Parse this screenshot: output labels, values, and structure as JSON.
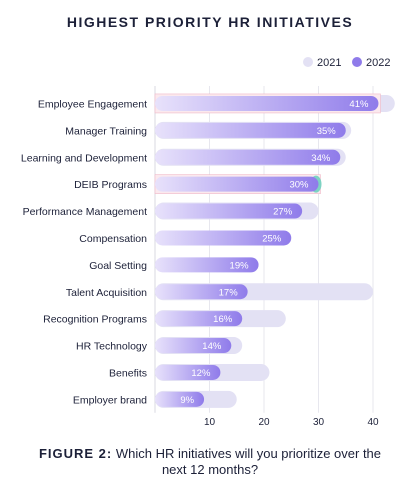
{
  "chart_data": {
    "type": "bar",
    "title": "HIGHEST PRIORITY HR INITIATIVES",
    "orientation": "horizontal",
    "categories": [
      "Employee Engagement",
      "Manager Training",
      "Learning and Development",
      "DEIB Programs",
      "Performance Management",
      "Compensation",
      "Goal Setting",
      "Talent Acquisition",
      "Recognition Programs",
      "HR Technology",
      "Benefits",
      "Employer brand"
    ],
    "series": [
      {
        "name": "2021",
        "color": "#e3e1f4",
        "values": [
          44,
          36,
          35,
          30,
          30,
          null,
          null,
          40,
          24,
          16,
          21,
          15
        ]
      },
      {
        "name": "2022",
        "color": "#8f7bea",
        "values": [
          41,
          35,
          34,
          30,
          27,
          25,
          19,
          17,
          16,
          14,
          12,
          9
        ]
      }
    ],
    "data_labels": [
      "41%",
      "35%",
      "34%",
      "30%",
      "27%",
      "25%",
      "19%",
      "17%",
      "16%",
      "14%",
      "12%",
      "9%"
    ],
    "x_ticks": [
      10,
      20,
      30,
      40
    ],
    "xlim": [
      0,
      45
    ],
    "legend": {
      "position": "top-right",
      "labels": [
        "2021",
        "2022"
      ]
    },
    "grid": true,
    "highlight_color": "#7dd3c3",
    "highlight_bg": "#fbe9ee"
  },
  "caption": {
    "figure_label": "FIGURE 2:",
    "text": "Which HR initiatives will you prioritize over the next 12 months?"
  }
}
